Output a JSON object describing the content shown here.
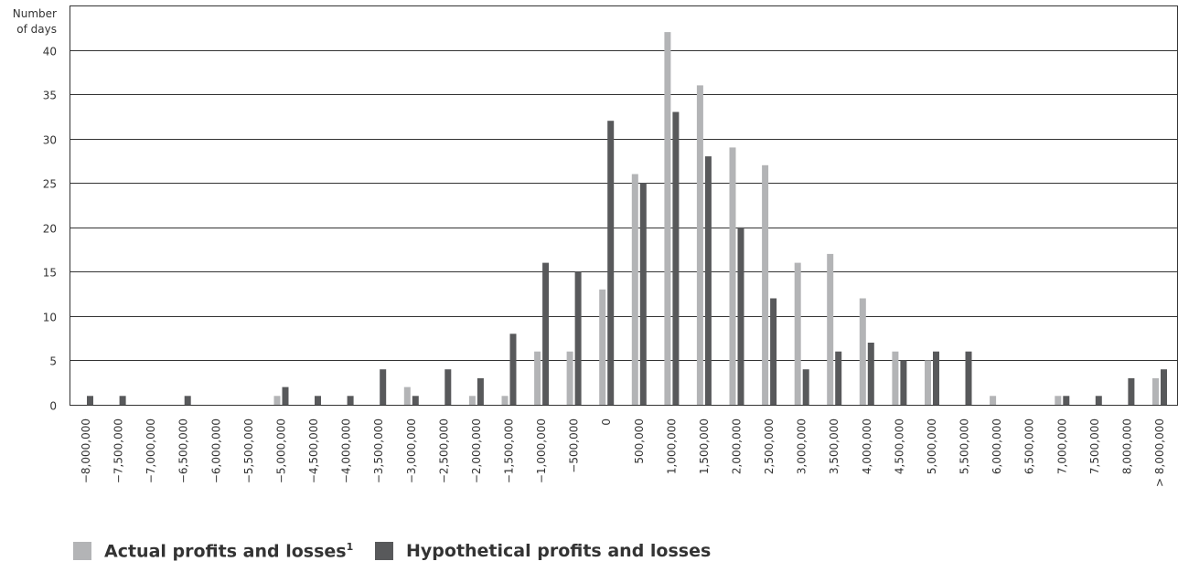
{
  "chart_data": {
    "type": "bar",
    "title": "",
    "ylabel_lines": [
      "Number",
      "of days"
    ],
    "xlabel": "",
    "ylim": [
      0,
      45
    ],
    "yticks": [
      0,
      5,
      10,
      15,
      20,
      25,
      30,
      35,
      40
    ],
    "grid": true,
    "legend_position": "bottom-left",
    "categories": [
      "−8,000,000",
      "−7,500,000",
      "−7,000,000",
      "−6,500,000",
      "−6,000,000",
      "−5,500,000",
      "−5,000,000",
      "−4,500,000",
      "−4,000,000",
      "−3,500,000",
      "−3,000,000",
      "−2,500,000",
      "−2,000,000",
      "−1,500,000",
      "−1,000,000",
      "−500,000",
      "0",
      "500,000",
      "1,000,000",
      "1,500,000",
      "2,000,000",
      "2,500,000",
      "3,000,000",
      "3,500,000",
      "4,000,000",
      "4,500,000",
      "5,000,000",
      "5,500,000",
      "6,000,000",
      "6,500,000",
      "7,000,000",
      "7,500,000",
      "8,000,000",
      "> 8,000,000"
    ],
    "series": [
      {
        "name": "Actual profits and losses",
        "superscript": "1",
        "color": "#b3b4b6",
        "values": [
          0,
          0,
          0,
          0,
          0,
          0,
          1,
          0,
          0,
          0,
          2,
          0,
          1,
          1,
          6,
          6,
          13,
          26,
          42,
          36,
          29,
          27,
          16,
          17,
          12,
          6,
          5,
          0,
          1,
          0,
          1,
          0,
          0,
          3
        ]
      },
      {
        "name": "Hypothetical profits and losses",
        "color": "#58595b",
        "values": [
          1,
          1,
          0,
          1,
          0,
          0,
          2,
          1,
          1,
          4,
          1,
          4,
          3,
          8,
          16,
          15,
          32,
          25,
          33,
          28,
          20,
          12,
          4,
          6,
          7,
          5,
          6,
          6,
          0,
          0,
          1,
          1,
          3,
          4
        ]
      }
    ]
  }
}
